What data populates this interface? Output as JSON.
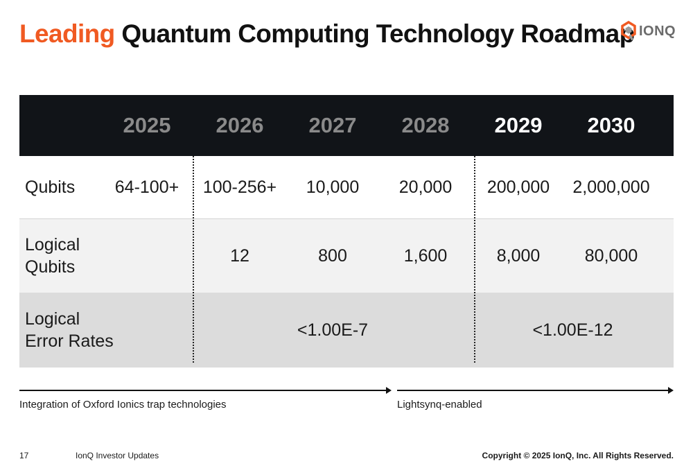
{
  "title": {
    "accent": "Leading",
    "rest": "Quantum Computing Technology Roadmap"
  },
  "logo": {
    "text": "IONQ",
    "colors": {
      "orange": "#f05a22",
      "gray": "#9b9b9b"
    }
  },
  "table": {
    "years": [
      "2025",
      "2026",
      "2027",
      "2028",
      "2029",
      "2030"
    ],
    "rows": [
      {
        "label": "Qubits",
        "values": [
          "64-100+",
          "100-256+",
          "10,000",
          "20,000",
          "200,000",
          "2,000,000"
        ]
      },
      {
        "label_lines": [
          "Logical",
          "Qubits"
        ],
        "values": [
          "",
          "12",
          "800",
          "1,600",
          "8,000",
          "80,000"
        ]
      },
      {
        "label_lines": [
          "Logical",
          "Error Rates"
        ],
        "spans": [
          "<1.00E-7",
          "<1.00E-12"
        ]
      }
    ]
  },
  "timeline": {
    "left_caption": "Integration of Oxford Ionics trap technologies",
    "right_caption": "Lightsynq-enabled"
  },
  "footer": {
    "page_number": "17",
    "section": "IonQ Investor Updates",
    "copyright": "Copyright © 2025 IonQ, Inc. All Rights Reserved."
  },
  "colors": {
    "accent": "#f05a22",
    "header_bg": "#111418",
    "row_alt": "#f2f2f2",
    "row_shaded": "#dcdcdc"
  }
}
